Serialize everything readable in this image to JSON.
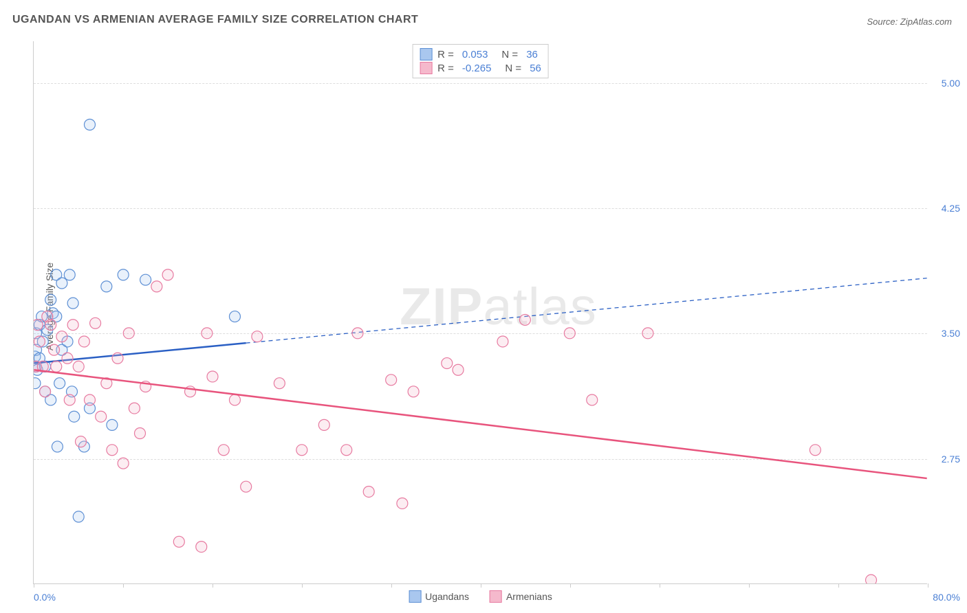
{
  "title": "UGANDAN VS ARMENIAN AVERAGE FAMILY SIZE CORRELATION CHART",
  "source": "Source: ZipAtlas.com",
  "ylabel": "Average Family Size",
  "watermark_zip": "ZIP",
  "watermark_atlas": "atlas",
  "chart": {
    "type": "scatter",
    "xlim": [
      0,
      80
    ],
    "ylim": [
      2.0,
      5.25
    ],
    "ytick_values": [
      2.75,
      3.5,
      4.25,
      5.0
    ],
    "ytick_labels": [
      "2.75",
      "3.50",
      "4.25",
      "5.00"
    ],
    "xtick_positions": [
      0,
      8,
      16,
      24,
      32,
      40,
      48,
      56,
      64,
      72,
      80
    ],
    "xlabel_min": "0.0%",
    "xlabel_max": "80.0%",
    "background_color": "#ffffff",
    "grid_color": "#dddddd",
    "axis_color": "#cccccc",
    "marker_radius": 8,
    "marker_stroke_width": 1.2,
    "marker_fill_opacity": 0.25,
    "series": [
      {
        "name": "Ugandans",
        "color_fill": "#a9c7ef",
        "color_stroke": "#5d8fd4",
        "R": "0.053",
        "N": "36",
        "trendline": {
          "start": [
            0,
            3.32
          ],
          "end": [
            80,
            3.83
          ],
          "solid_until_x": 19,
          "color": "#2a5fc4",
          "width": 2.5
        },
        "points": [
          [
            0.1,
            3.36
          ],
          [
            0.1,
            3.3
          ],
          [
            0.1,
            3.2
          ],
          [
            0.2,
            3.5
          ],
          [
            0.2,
            3.4
          ],
          [
            0.3,
            3.28
          ],
          [
            0.5,
            3.55
          ],
          [
            0.5,
            3.35
          ],
          [
            0.7,
            3.6
          ],
          [
            0.8,
            3.45
          ],
          [
            1.0,
            3.15
          ],
          [
            1.0,
            3.3
          ],
          [
            1.2,
            3.52
          ],
          [
            1.5,
            3.7
          ],
          [
            1.5,
            3.1
          ],
          [
            1.7,
            3.62
          ],
          [
            2.0,
            3.85
          ],
          [
            2.0,
            3.6
          ],
          [
            2.1,
            2.82
          ],
          [
            2.3,
            3.2
          ],
          [
            2.5,
            3.8
          ],
          [
            2.5,
            3.4
          ],
          [
            3.0,
            3.45
          ],
          [
            3.2,
            3.85
          ],
          [
            3.4,
            3.15
          ],
          [
            3.5,
            3.68
          ],
          [
            3.6,
            3.0
          ],
          [
            4.0,
            2.4
          ],
          [
            4.5,
            2.82
          ],
          [
            5.0,
            4.75
          ],
          [
            5.0,
            3.05
          ],
          [
            6.5,
            3.78
          ],
          [
            7.0,
            2.95
          ],
          [
            8.0,
            3.85
          ],
          [
            10.0,
            3.82
          ],
          [
            18.0,
            3.6
          ]
        ]
      },
      {
        "name": "Armenians",
        "color_fill": "#f5b9cc",
        "color_stroke": "#e77aa0",
        "R": "-0.265",
        "N": "56",
        "trendline": {
          "start": [
            0,
            3.28
          ],
          "end": [
            80,
            2.63
          ],
          "solid_until_x": 80,
          "color": "#e8547d",
          "width": 2.5
        },
        "points": [
          [
            0.2,
            3.3
          ],
          [
            0.3,
            3.55
          ],
          [
            0.5,
            3.45
          ],
          [
            0.8,
            3.3
          ],
          [
            1.0,
            3.15
          ],
          [
            1.2,
            3.6
          ],
          [
            1.5,
            3.55
          ],
          [
            1.8,
            3.4
          ],
          [
            2.0,
            3.3
          ],
          [
            2.5,
            3.48
          ],
          [
            3.0,
            3.35
          ],
          [
            3.2,
            3.1
          ],
          [
            3.5,
            3.55
          ],
          [
            4.0,
            3.3
          ],
          [
            4.2,
            2.85
          ],
          [
            4.5,
            3.45
          ],
          [
            5.0,
            3.1
          ],
          [
            5.5,
            3.56
          ],
          [
            6.0,
            3.0
          ],
          [
            6.5,
            3.2
          ],
          [
            7.0,
            2.8
          ],
          [
            7.5,
            3.35
          ],
          [
            8.0,
            2.72
          ],
          [
            8.5,
            3.5
          ],
          [
            9.0,
            3.05
          ],
          [
            9.5,
            2.9
          ],
          [
            10.0,
            3.18
          ],
          [
            11.0,
            3.78
          ],
          [
            12.0,
            3.85
          ],
          [
            13.0,
            2.25
          ],
          [
            14.0,
            3.15
          ],
          [
            15.0,
            2.22
          ],
          [
            15.5,
            3.5
          ],
          [
            16.0,
            3.24
          ],
          [
            17.0,
            2.8
          ],
          [
            18.0,
            3.1
          ],
          [
            19.0,
            2.58
          ],
          [
            20.0,
            3.48
          ],
          [
            22.0,
            3.2
          ],
          [
            24.0,
            2.8
          ],
          [
            26.0,
            2.95
          ],
          [
            28.0,
            2.8
          ],
          [
            29.0,
            3.5
          ],
          [
            30.0,
            2.55
          ],
          [
            32.0,
            3.22
          ],
          [
            33.0,
            2.48
          ],
          [
            34.0,
            3.15
          ],
          [
            37.0,
            3.32
          ],
          [
            38.0,
            3.28
          ],
          [
            42.0,
            3.45
          ],
          [
            44.0,
            3.58
          ],
          [
            48.0,
            3.5
          ],
          [
            50.0,
            3.1
          ],
          [
            55.0,
            3.5
          ],
          [
            70.0,
            2.8
          ],
          [
            75.0,
            2.02
          ]
        ]
      }
    ],
    "stats_legend": {
      "r_label": "R =",
      "n_label": "N ="
    },
    "bottom_legend": {
      "items": [
        "Ugandans",
        "Armenians"
      ]
    }
  }
}
